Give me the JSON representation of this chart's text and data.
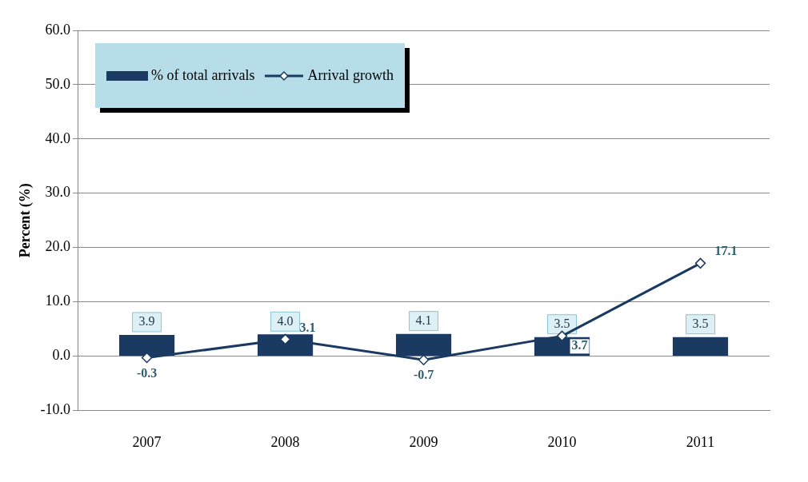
{
  "chart_data": {
    "type": "bar",
    "ylabel": "Percent (%)",
    "categories": [
      "2007",
      "2008",
      "2009",
      "2010",
      "2011"
    ],
    "series": [
      {
        "name": "% of total arrivals",
        "color": "#1b3a62",
        "values": [
          3.9,
          4.0,
          4.1,
          3.5,
          3.5
        ],
        "value_labels": [
          "3.9",
          "4.0",
          "4.1",
          "3.5",
          "3.5"
        ]
      },
      {
        "name": "Arrival growth",
        "type": "line",
        "color": "#1b3a62",
        "marker": "diamond",
        "values": [
          -0.3,
          3.1,
          -0.7,
          3.7,
          17.1
        ],
        "value_labels": [
          "-0.3",
          "3.1",
          "-0.7",
          "3.7",
          "17.1"
        ]
      }
    ],
    "ylim": [
      -10,
      60
    ],
    "yticks": [
      {
        "value": -10,
        "label": "-10.0"
      },
      {
        "value": 0,
        "label": "0.0"
      },
      {
        "value": 10,
        "label": "10.0"
      },
      {
        "value": 20,
        "label": "20.0"
      },
      {
        "value": 30,
        "label": "30.0"
      },
      {
        "value": 40,
        "label": "40.0"
      },
      {
        "value": 50,
        "label": "50.0"
      },
      {
        "value": 60,
        "label": "60.0"
      }
    ],
    "grid": "y",
    "legend": "top left"
  }
}
